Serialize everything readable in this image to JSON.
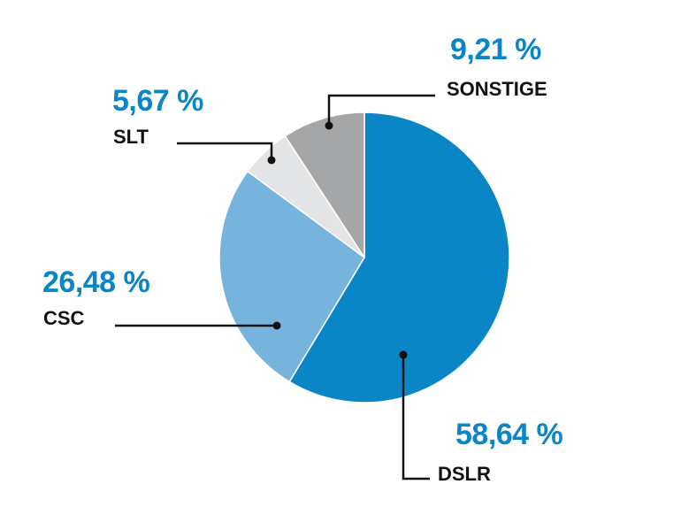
{
  "chart_data": {
    "type": "pie",
    "direction": "clockwise",
    "start_angle": "12 o'clock",
    "categories": [
      "DSLR",
      "CSC",
      "SLT",
      "SONSTIGE"
    ],
    "values": [
      58.64,
      26.48,
      5.67,
      9.21
    ],
    "value_labels": [
      "58,64 %",
      "26,48 %",
      "5,67 %",
      "9,21 %"
    ],
    "colors": [
      "#0a85c6",
      "#76b3dd",
      "#e3e4e6",
      "#a4a6a8"
    ],
    "label_color": "#0a85c6",
    "legend": "none"
  }
}
